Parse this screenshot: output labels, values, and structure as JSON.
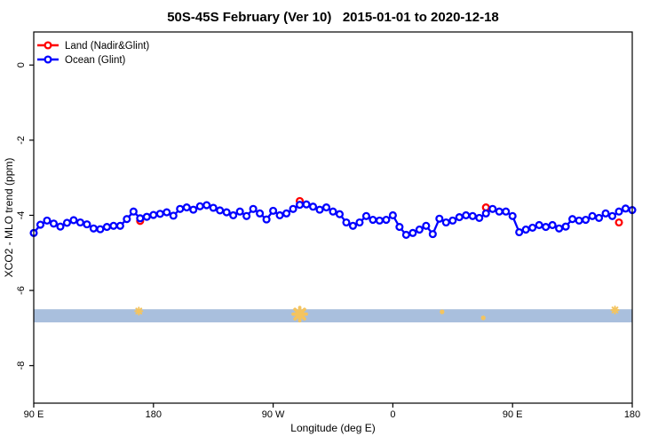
{
  "title": "50S-45S February (Ver 10)   2015-01-01 to 2020-12-18",
  "legend": {
    "items": [
      {
        "name": "land",
        "label": "Land (Nadir&Glint)",
        "color": "#ff0000"
      },
      {
        "name": "ocean",
        "label": "Ocean (Glint)",
        "color": "#0000ff"
      }
    ]
  },
  "chart_data": {
    "type": "line",
    "title": "50S-45S February (Ver 10)   2015-01-01 to 2020-12-18",
    "xlabel": "Longitude (deg E)",
    "ylabel": "XCO2 - MLO trend (ppm)",
    "xlim": [
      90,
      540
    ],
    "ylim": [
      -9.0,
      0.88
    ],
    "grid": false,
    "legend_position": "top-left",
    "x_ticks": [
      {
        "value": 90,
        "label": "90 E"
      },
      {
        "value": 180,
        "label": "180"
      },
      {
        "value": 270,
        "label": "90 W"
      },
      {
        "value": 360,
        "label": "0"
      },
      {
        "value": 450,
        "label": "90 E"
      },
      {
        "value": 540,
        "label": "180"
      }
    ],
    "y_ticks": [
      {
        "value": 0,
        "label": "0"
      },
      {
        "value": -2,
        "label": "-2"
      },
      {
        "value": -4,
        "label": "-4"
      },
      {
        "value": -6,
        "label": "-6"
      },
      {
        "value": -8,
        "label": "-8"
      }
    ],
    "series": [
      {
        "name": "Ocean (Glint)",
        "color": "#0000ff",
        "marker": "open-circle",
        "line": true,
        "x_start": 90,
        "x_step": 5,
        "y": [
          -4.47,
          -4.25,
          -4.14,
          -4.22,
          -4.3,
          -4.2,
          -4.13,
          -4.19,
          -4.24,
          -4.35,
          -4.37,
          -4.31,
          -4.28,
          -4.28,
          -4.1,
          -3.9,
          -4.08,
          -4.04,
          -3.99,
          -3.96,
          -3.92,
          -4.01,
          -3.83,
          -3.79,
          -3.85,
          -3.76,
          -3.73,
          -3.8,
          -3.87,
          -3.92,
          -4.0,
          -3.9,
          -4.02,
          -3.83,
          -3.95,
          -4.11,
          -3.88,
          -4.0,
          -3.95,
          -3.83,
          -3.72,
          -3.71,
          -3.77,
          -3.85,
          -3.79,
          -3.9,
          -3.97,
          -4.19,
          -4.28,
          -4.19,
          -4.02,
          -4.12,
          -4.14,
          -4.12,
          -4.0,
          -4.31,
          -4.52,
          -4.47,
          -4.38,
          -4.28,
          -4.5,
          -4.09,
          -4.19,
          -4.14,
          -4.05,
          -4.0,
          -4.02,
          -4.07,
          -3.95,
          -3.83,
          -3.9,
          -3.9,
          -4.02,
          -4.45,
          -4.38,
          -4.33,
          -4.26,
          -4.31,
          -4.26,
          -4.35,
          -4.3,
          -4.1,
          -4.14,
          -4.12,
          -4.02,
          -4.07,
          -3.95,
          -4.02,
          -3.9,
          -3.82,
          -3.86
        ]
      },
      {
        "name": "Land (Nadir&Glint)",
        "color": "#ff0000",
        "marker": "open-circle",
        "line": false,
        "x": [
          170,
          290,
          430,
          530
        ],
        "y": [
          -4.15,
          -3.62,
          -3.79,
          -4.19
        ]
      }
    ],
    "band": {
      "y_top": -6.5,
      "y_bottom": -6.85,
      "color": "#a9bfdd"
    },
    "flags": {
      "color": "#f4c45f",
      "marker": "asterisk",
      "points": [
        {
          "x": 169,
          "y": -6.55,
          "size": 8
        },
        {
          "x": 290,
          "y": -6.63,
          "size": 15
        },
        {
          "x": 397,
          "y": -6.57,
          "size": 4
        },
        {
          "x": 428,
          "y": -6.73,
          "size": 4
        },
        {
          "x": 527,
          "y": -6.52,
          "size": 8
        }
      ]
    }
  }
}
